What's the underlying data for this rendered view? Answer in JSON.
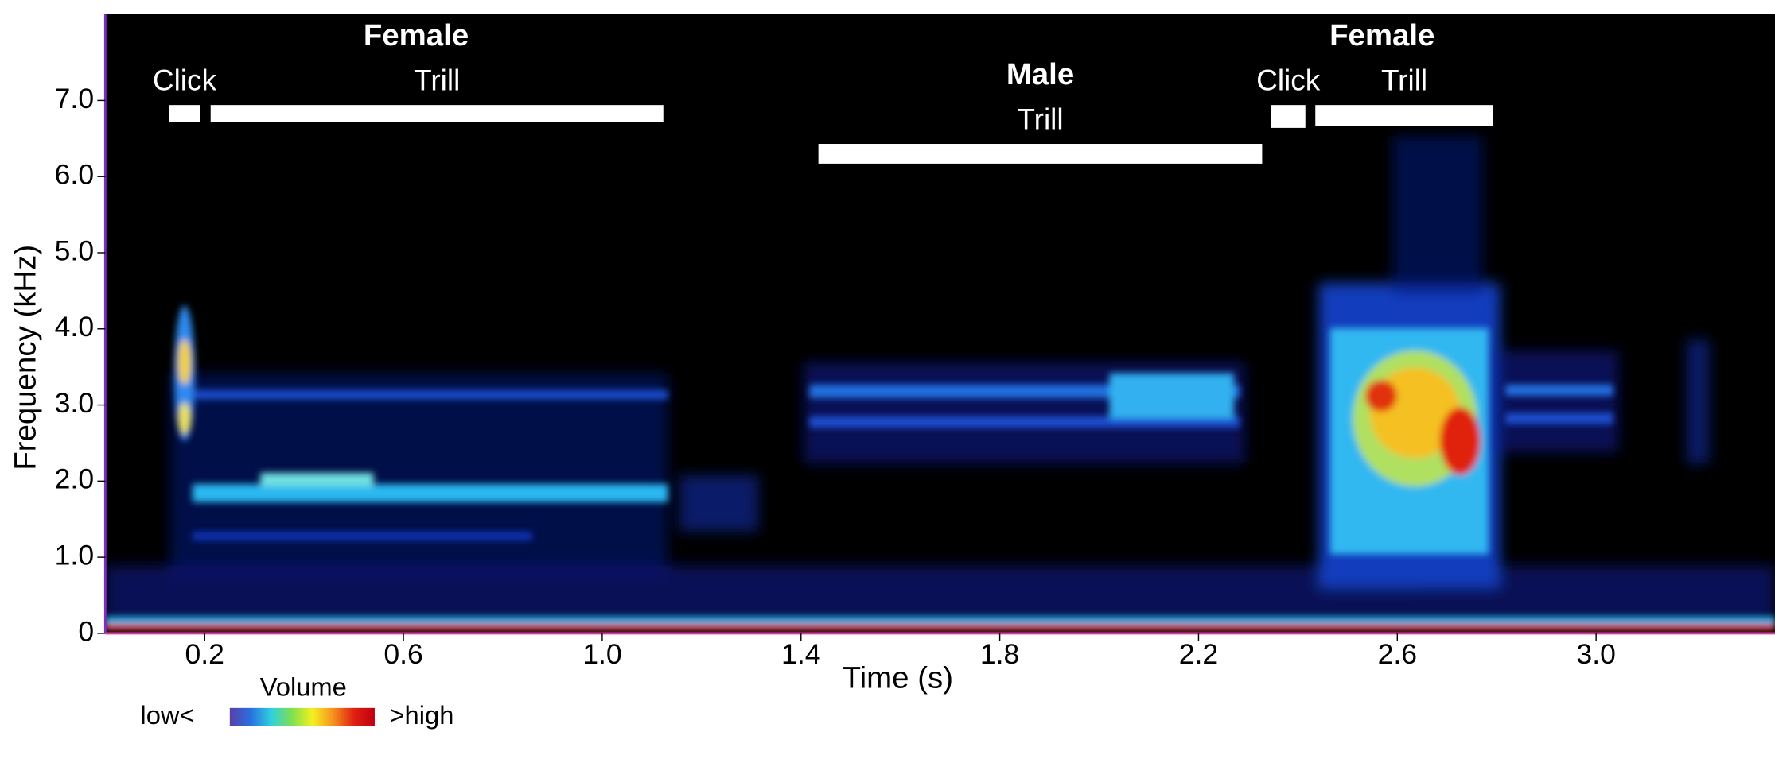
{
  "chart_data": {
    "type": "spectrogram",
    "xlabel": "Time (s)",
    "ylabel": "Frequency (kHz)",
    "xlim": [
      0,
      3.36
    ],
    "ylim": [
      0,
      8.14
    ],
    "xticks": [
      0.2,
      0.6,
      {
        "value": 1.0,
        "label": "1.0"
      },
      1.4,
      1.8,
      2.2,
      2.6,
      {
        "value": 3.0,
        "label": "3.0"
      }
    ],
    "yticks": [
      0,
      {
        "value": 1,
        "label": "1.0"
      },
      {
        "value": 2,
        "label": "2.0"
      },
      {
        "value": 3,
        "label": "3.0"
      },
      {
        "value": 4,
        "label": "4.0"
      },
      {
        "value": 5,
        "label": "5.0"
      },
      {
        "value": 6,
        "label": "6.0"
      },
      {
        "value": 7,
        "label": "7.0"
      }
    ],
    "background": "#000000",
    "annotation_color": "#ffffff",
    "groups": [
      {
        "label": "Female",
        "calls": [
          {
            "label": "Click",
            "start": 0.128,
            "end": 0.191,
            "fmin": 6.72,
            "fmax": 6.94
          },
          {
            "label": "Trill",
            "start": 0.212,
            "end": 1.123,
            "fmin": 6.72,
            "fmax": 6.94
          }
        ]
      },
      {
        "label": "Male",
        "calls": [
          {
            "label": "Trill",
            "start": 1.435,
            "end": 2.328,
            "fmin": 6.17,
            "fmax": 6.43
          }
        ]
      },
      {
        "label": "Female",
        "calls": [
          {
            "label": "Click",
            "start": 2.346,
            "end": 2.415,
            "fmin": 6.64,
            "fmax": 6.94
          },
          {
            "label": "Trill",
            "start": 2.435,
            "end": 2.793,
            "fmin": 6.66,
            "fmax": 6.94
          }
        ]
      }
    ],
    "colorbar": {
      "title": "Volume",
      "low_label": "low<",
      "high_label": ">high",
      "colors": [
        "#5a3fa8",
        "#2a6fe0",
        "#2fd0e0",
        "#7fe050",
        "#f5f020",
        "#f59020",
        "#e02010",
        "#c00010"
      ]
    }
  }
}
